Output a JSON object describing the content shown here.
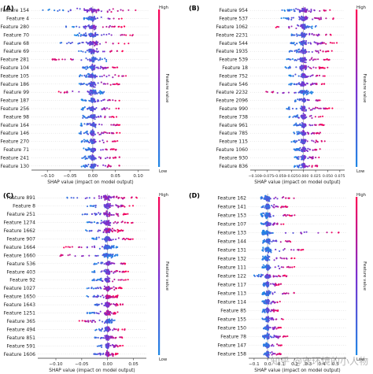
{
  "watermark": "知乎 @安环境的小人物",
  "colorbar": {
    "high": "High",
    "low": "Low",
    "label": "Feature value",
    "color_high": "#ff0052",
    "color_mid": "#7a2fd0",
    "color_low": "#1e88e5"
  },
  "chart_data": [
    {
      "type": "scatter",
      "panel_label": "(A)",
      "xlabel": "SHAP value (impact on model output)",
      "xlim": [
        -0.135,
        0.125
      ],
      "xticks": [
        {
          "v": -0.1,
          "t": "−0.10"
        },
        {
          "v": -0.05,
          "t": "−0.05"
        },
        {
          "v": 0.0,
          "t": "0.00"
        },
        {
          "v": 0.05,
          "t": "0.05"
        },
        {
          "v": 0.1,
          "t": "0.10"
        }
      ],
      "features": [
        {
          "name": "Feature 154",
          "lo": -0.11,
          "hi": 0.1
        },
        {
          "name": "Feature 4",
          "lo": -0.02,
          "hi": 0.065
        },
        {
          "name": "Feature 280",
          "lo": -0.06,
          "hi": 0.07
        },
        {
          "name": "Feature 70",
          "lo": -0.04,
          "hi": 0.095
        },
        {
          "name": "Feature 68",
          "lo": -0.075,
          "hi": 0.08
        },
        {
          "name": "Feature 69",
          "lo": -0.04,
          "hi": 0.07
        },
        {
          "name": "Feature 281",
          "lo": -0.09,
          "hi": 0.03
        },
        {
          "name": "Feature 104",
          "lo": -0.025,
          "hi": 0.055
        },
        {
          "name": "Feature 105",
          "lo": -0.03,
          "hi": 0.085
        },
        {
          "name": "Feature 186",
          "lo": -0.03,
          "hi": 0.06
        },
        {
          "name": "Feature 99",
          "lo": -0.08,
          "hi": 0.025
        },
        {
          "name": "Feature 187",
          "lo": -0.025,
          "hi": 0.06
        },
        {
          "name": "Feature 256",
          "lo": -0.025,
          "hi": 0.06
        },
        {
          "name": "Feature 98",
          "lo": -0.025,
          "hi": 0.055
        },
        {
          "name": "Feature 164",
          "lo": -0.03,
          "hi": 0.07
        },
        {
          "name": "Feature 146",
          "lo": -0.03,
          "hi": 0.06
        },
        {
          "name": "Feature 270",
          "lo": -0.025,
          "hi": 0.055
        },
        {
          "name": "Feature 71",
          "lo": -0.02,
          "hi": 0.055
        },
        {
          "name": "Feature 241",
          "lo": -0.025,
          "hi": 0.06
        },
        {
          "name": "Feature 130",
          "lo": -0.025,
          "hi": 0.06
        }
      ]
    },
    {
      "type": "scatter",
      "panel_label": "(B)",
      "xlabel": "SHAP value (impact on model output)",
      "xlim": [
        -0.11,
        0.085
      ],
      "xticks": [
        {
          "v": -0.1,
          "t": "−0.100"
        },
        {
          "v": -0.075,
          "t": "−0.075"
        },
        {
          "v": -0.05,
          "t": "−0.050"
        },
        {
          "v": -0.025,
          "t": "−0.025"
        },
        {
          "v": 0.0,
          "t": "0.000"
        },
        {
          "v": 0.025,
          "t": "0.025"
        },
        {
          "v": 0.05,
          "t": "0.050"
        },
        {
          "v": 0.075,
          "t": "0.075"
        }
      ],
      "features": [
        {
          "name": "Feature 954",
          "lo": -0.045,
          "hi": 0.06
        },
        {
          "name": "Feature 537",
          "lo": -0.05,
          "hi": 0.065
        },
        {
          "name": "Feature 1062",
          "lo": -0.06,
          "hi": 0.03
        },
        {
          "name": "Feature 2231",
          "lo": -0.025,
          "hi": 0.06
        },
        {
          "name": "Feature 544",
          "lo": -0.03,
          "hi": 0.07
        },
        {
          "name": "Feature 1935",
          "lo": -0.03,
          "hi": 0.06
        },
        {
          "name": "Feature 539",
          "lo": -0.035,
          "hi": 0.055
        },
        {
          "name": "Feature 18",
          "lo": -0.04,
          "hi": 0.05
        },
        {
          "name": "Feature 752",
          "lo": -0.03,
          "hi": 0.045
        },
        {
          "name": "Feature 546",
          "lo": -0.03,
          "hi": 0.045
        },
        {
          "name": "Feature 2232",
          "lo": -0.09,
          "hi": 0.02
        },
        {
          "name": "Feature 2096",
          "lo": -0.02,
          "hi": 0.04
        },
        {
          "name": "Feature 990",
          "lo": -0.035,
          "hi": 0.06
        },
        {
          "name": "Feature 738",
          "lo": -0.03,
          "hi": 0.04
        },
        {
          "name": "Feature 961",
          "lo": -0.02,
          "hi": 0.045
        },
        {
          "name": "Feature 785",
          "lo": -0.02,
          "hi": 0.035
        },
        {
          "name": "Feature 115",
          "lo": -0.025,
          "hi": 0.045
        },
        {
          "name": "Feature 1060",
          "lo": -0.02,
          "hi": 0.035
        },
        {
          "name": "Feature 930",
          "lo": -0.02,
          "hi": 0.035
        },
        {
          "name": "Feature 836",
          "lo": -0.02,
          "hi": 0.03
        }
      ]
    },
    {
      "type": "scatter",
      "panel_label": "(C)",
      "xlabel": "SHAP value (impact on model output)",
      "xlim": [
        -0.135,
        0.075
      ],
      "xticks": [
        {
          "v": -0.1,
          "t": "−0.10"
        },
        {
          "v": -0.05,
          "t": "−0.05"
        },
        {
          "v": 0.0,
          "t": "0.00"
        },
        {
          "v": 0.05,
          "t": "0.05"
        }
      ],
      "features": [
        {
          "name": "Feature 891",
          "lo": -0.08,
          "hi": 0.06
        },
        {
          "name": "Feature 8",
          "lo": -0.04,
          "hi": 0.05
        },
        {
          "name": "Feature 251",
          "lo": -0.05,
          "hi": 0.04
        },
        {
          "name": "Feature 1274",
          "lo": -0.04,
          "hi": 0.05
        },
        {
          "name": "Feature 1662",
          "lo": -0.045,
          "hi": 0.03
        },
        {
          "name": "Feature 907",
          "lo": -0.03,
          "hi": 0.05
        },
        {
          "name": "Feature 1664",
          "lo": -0.085,
          "hi": 0.02
        },
        {
          "name": "Feature 1660",
          "lo": -0.105,
          "hi": 0.02
        },
        {
          "name": "Feature 536",
          "lo": -0.03,
          "hi": 0.04
        },
        {
          "name": "Feature 403",
          "lo": -0.03,
          "hi": 0.04
        },
        {
          "name": "Feature 92",
          "lo": -0.03,
          "hi": 0.04
        },
        {
          "name": "Feature 1027",
          "lo": -0.04,
          "hi": 0.03
        },
        {
          "name": "Feature 1650",
          "lo": -0.04,
          "hi": 0.02
        },
        {
          "name": "Feature 1643",
          "lo": -0.03,
          "hi": 0.03
        },
        {
          "name": "Feature 1251",
          "lo": -0.04,
          "hi": 0.02
        },
        {
          "name": "Feature 365",
          "lo": -0.06,
          "hi": 0.015
        },
        {
          "name": "Feature 494",
          "lo": -0.025,
          "hi": 0.035
        },
        {
          "name": "Feature 851",
          "lo": -0.025,
          "hi": 0.03
        },
        {
          "name": "Feature 591",
          "lo": -0.02,
          "hi": 0.03
        },
        {
          "name": "Feature 1606",
          "lo": -0.03,
          "hi": 0.02
        }
      ]
    },
    {
      "type": "scatter",
      "panel_label": "(D)",
      "xlabel": "SHAP value (impact on model output)",
      "xlim": [
        -0.14,
        0.58
      ],
      "xticks": [
        {
          "v": -0.1,
          "t": "−0.1"
        },
        {
          "v": 0.0,
          "t": "0.0"
        },
        {
          "v": 0.1,
          "t": "0.1"
        },
        {
          "v": 0.2,
          "t": "0.2"
        },
        {
          "v": 0.3,
          "t": "0.3"
        },
        {
          "v": 0.4,
          "t": "0.4"
        },
        {
          "v": 0.5,
          "t": "0.5"
        }
      ],
      "features": [
        {
          "name": "Feature 162",
          "lo": -0.05,
          "hi": 0.2
        },
        {
          "name": "Feature 141",
          "lo": -0.05,
          "hi": 0.15
        },
        {
          "name": "Feature 153",
          "lo": -0.05,
          "hi": 0.2
        },
        {
          "name": "Feature 107",
          "lo": -0.05,
          "hi": 0.12
        },
        {
          "name": "Feature 133",
          "lo": -0.04,
          "hi": 0.55
        },
        {
          "name": "Feature 144",
          "lo": -0.04,
          "hi": 0.2
        },
        {
          "name": "Feature 131",
          "lo": -0.04,
          "hi": 0.3
        },
        {
          "name": "Feature 132",
          "lo": -0.04,
          "hi": 0.2
        },
        {
          "name": "Feature 111",
          "lo": -0.04,
          "hi": 0.2
        },
        {
          "name": "Feature 122",
          "lo": -0.1,
          "hi": 0.15
        },
        {
          "name": "Feature 117",
          "lo": -0.04,
          "hi": 0.1
        },
        {
          "name": "Feature 113",
          "lo": -0.04,
          "hi": 0.2
        },
        {
          "name": "Feature 114",
          "lo": -0.04,
          "hi": 0.1
        },
        {
          "name": "Feature 85",
          "lo": -0.04,
          "hi": 0.08
        },
        {
          "name": "Feature 155",
          "lo": -0.04,
          "hi": 0.12
        },
        {
          "name": "Feature 150",
          "lo": -0.03,
          "hi": 0.1
        },
        {
          "name": "Feature 78",
          "lo": -0.04,
          "hi": 0.15
        },
        {
          "name": "Feature 147",
          "lo": -0.03,
          "hi": 0.12
        },
        {
          "name": "Feature 158",
          "lo": -0.03,
          "hi": 0.1
        }
      ]
    }
  ]
}
